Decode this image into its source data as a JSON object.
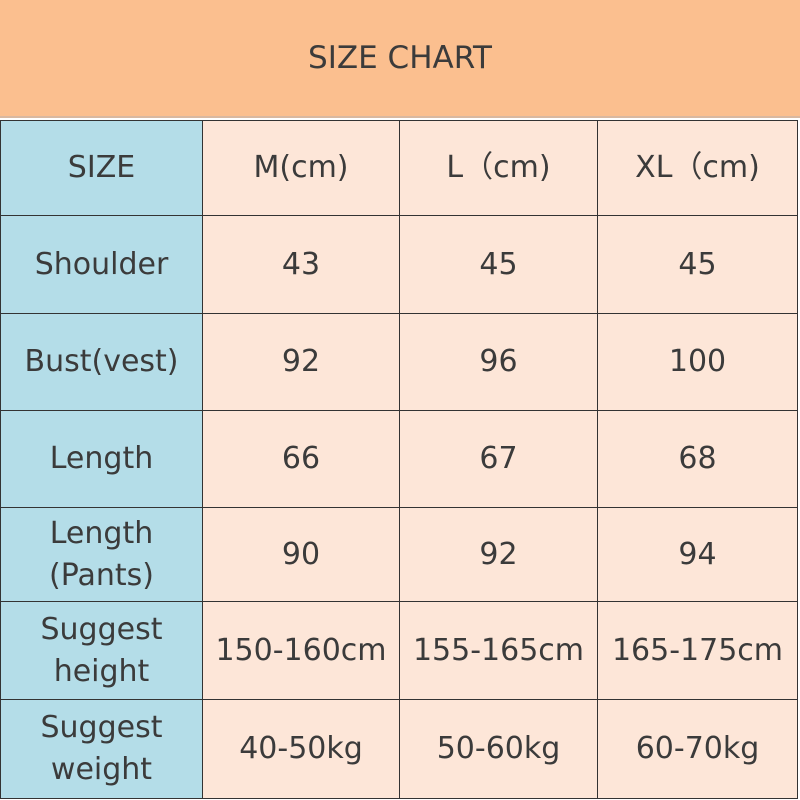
{
  "title": "SIZE CHART",
  "colors": {
    "title_bg": "#fbbf8f",
    "label_bg": "#b4dde8",
    "cell_bg": "#fde6d8"
  },
  "header": [
    "SIZE",
    "M(cm)",
    "L（cm)",
    "XL（cm)"
  ],
  "rows": [
    {
      "label": "Shoulder",
      "values": [
        "43",
        "45",
        "45"
      ]
    },
    {
      "label": "Bust(vest)",
      "values": [
        "92",
        "96",
        "100"
      ]
    },
    {
      "label": "Length",
      "values": [
        "66",
        "67",
        "68"
      ]
    },
    {
      "label": "Length\n(Pants)",
      "values": [
        "90",
        "92",
        "94"
      ]
    },
    {
      "label": "Suggest\nheight",
      "values": [
        "150-160cm",
        "155-165cm",
        "165-175cm"
      ]
    },
    {
      "label": "Suggest\nweight",
      "values": [
        "40-50kg",
        "50-60kg",
        "60-70kg"
      ]
    }
  ]
}
